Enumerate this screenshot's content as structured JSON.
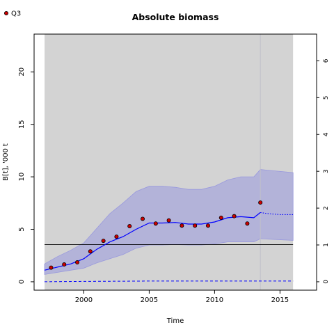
{
  "chart_data": {
    "type": "line",
    "title": "Absolute biomass",
    "xlabel": "Time",
    "ylabel": "B[t], '000 t",
    "xlim": [
      1996.2,
      2017.8
    ],
    "ylim": [
      -0.8,
      23.6
    ],
    "y2lim": [
      -0.2279,
      6.726
    ],
    "x_ticks": [
      2000,
      2005,
      2010,
      2015
    ],
    "y_ticks": [
      0,
      5,
      10,
      15,
      20
    ],
    "y2_ticks": [
      0,
      1,
      2,
      3,
      4,
      5,
      6
    ],
    "legend": {
      "position": "top-left",
      "entries": [
        "Q3"
      ]
    },
    "shaded_region_x": [
      1997,
      2016
    ],
    "vertical_line_x": 2013.5,
    "reference_hline_y": 3.55,
    "series": [
      {
        "name": "Q3",
        "kind": "points",
        "x": [
          1997.5,
          1998.5,
          1999.5,
          2000.5,
          2001.5,
          2002.5,
          2003.5,
          2004.5,
          2005.5,
          2006.5,
          2007.5,
          2008.5,
          2009.5,
          2010.5,
          2011.5,
          2012.5,
          2013.5
        ],
        "y": [
          1.35,
          1.65,
          1.85,
          2.9,
          3.9,
          4.3,
          5.3,
          6.0,
          5.55,
          5.85,
          5.35,
          5.35,
          5.35,
          6.1,
          6.25,
          5.55,
          7.55
        ]
      },
      {
        "kind": "estimate",
        "x": [
          1997,
          1998,
          1999,
          2000,
          2001,
          2002,
          2003,
          2004,
          2005,
          2006,
          2007,
          2008,
          2009,
          2010,
          2011,
          2012,
          2013,
          2013.5
        ],
        "y": [
          1.1,
          1.4,
          1.7,
          2.2,
          3.1,
          3.8,
          4.3,
          5.0,
          5.6,
          5.6,
          5.65,
          5.5,
          5.5,
          5.7,
          6.1,
          6.2,
          6.1,
          6.6
        ]
      },
      {
        "kind": "prediction",
        "x": [
          2013.5,
          2014,
          2015,
          2016
        ],
        "y": [
          6.6,
          6.5,
          6.4,
          6.4
        ]
      },
      {
        "kind": "ci_upper",
        "x": [
          1997,
          1998,
          1999,
          2000,
          2001,
          2002,
          2003,
          2004,
          2005,
          2006,
          2007,
          2008,
          2009,
          2010,
          2011,
          2012,
          2013,
          2013.5,
          2016
        ],
        "y": [
          1.7,
          2.4,
          3.0,
          3.7,
          5.1,
          6.5,
          7.5,
          8.6,
          9.1,
          9.1,
          9.0,
          8.8,
          8.8,
          9.1,
          9.7,
          10.0,
          10.0,
          10.7,
          10.4
        ]
      },
      {
        "kind": "ci_lower",
        "x": [
          1997,
          1998,
          1999,
          2000,
          2001,
          2002,
          2003,
          2004,
          2005,
          2006,
          2007,
          2008,
          2009,
          2010,
          2011,
          2012,
          2013,
          2013.5,
          2016
        ],
        "y": [
          0.7,
          0.9,
          1.1,
          1.3,
          1.8,
          2.2,
          2.6,
          3.2,
          3.5,
          3.5,
          3.55,
          3.5,
          3.5,
          3.6,
          3.8,
          3.8,
          3.8,
          4.1,
          3.95
        ]
      },
      {
        "kind": "fishing_mortality",
        "axis": "right",
        "x": [
          1997,
          2000,
          2005,
          2010,
          2013.5,
          2016
        ],
        "y": [
          0,
          0.01,
          0.02,
          0.02,
          0.02,
          0.02
        ]
      }
    ],
    "colors": {
      "panel_shade": "#d3d3d3",
      "ci_fill": "#b3b3d9",
      "line": "#0000ff",
      "point_fill": "#cc0000",
      "point_stroke": "#000000",
      "hline": "#000000",
      "vline": "#c0c0c8"
    }
  }
}
